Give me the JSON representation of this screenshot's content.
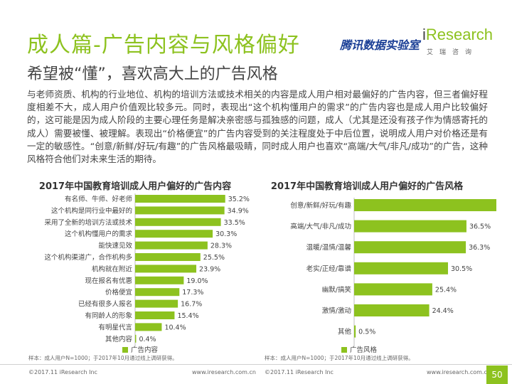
{
  "header": {
    "title": "成人篇-广告内容与风格偏好",
    "subtitle": "希望被“懂”，喜欢高大上的广告风格",
    "logo_tencent": "腾讯数据实验室",
    "logo_ir_i": "i",
    "logo_ir_rest": "Research",
    "logo_ir_cn": "艾瑞咨询"
  },
  "body_text": "与老师资质、机构的行业地位、机构的培训方法或技术相关的内容是成人用户相对最偏好的广告内容，但三者偏好程度相差不大，成人用户价值观比较多元。同时，表现出“这个机构懂用户的需求”的广告内容也是成人用户比较偏好的，这可能是因为成人阶段的主要心理任务是解决亲密感与孤独感的问题，成人（尤其是还没有孩子作为情感寄托的成人）需要被懂、被理解。表现出“价格便宜”的广告内容受到的关注程度处于中后位置，说明成人用户对价格还是有一定的敏感性。“创意/新鲜/好玩/有趣”的广告风格最吸睛，同时成人用户也喜欢“高端/大气/非凡/成功”的广告，这种风格符合他们对未来生活的期待。",
  "colors": {
    "accent": "#8dc21f",
    "bar": "#8dc21f",
    "brand_blue": "#1b3f96"
  },
  "chart_data": [
    {
      "type": "bar",
      "orientation": "horizontal",
      "title": "2017年中国教育培训成人用户偏好的广告内容",
      "categories": [
        "有名师、牛师、好老师",
        "这个机构是同行业中最好的",
        "采用了全新的培训方法或技术",
        "这个机构懂用户的需求",
        "能快速见效",
        "这个机构渠道广，合作机构多",
        "机构就在附近",
        "现在报名有优惠",
        "价格便宜",
        "已经有很多人报名",
        "有同龄人的形象",
        "有明星代言",
        "其他内容"
      ],
      "values": [
        35.2,
        34.9,
        33.5,
        30.3,
        28.3,
        25.5,
        23.9,
        19.0,
        17.3,
        16.7,
        15.4,
        10.4,
        0.4
      ],
      "value_labels": [
        "35.2%",
        "34.9%",
        "33.5%",
        "30.3%",
        "28.3%",
        "25.5%",
        "23.9%",
        "19.0%",
        "17.3%",
        "16.7%",
        "15.4%",
        "10.4%",
        "0.4%"
      ],
      "xlim": [
        0,
        50
      ],
      "legend": "广告内容",
      "legend_position": "bottom-left",
      "grid": false,
      "note": "样本：成人用户N=1000；于2017年10月通过线上调研获得。"
    },
    {
      "type": "bar",
      "orientation": "horizontal",
      "title": "2017年中国教育培训成人用户偏好的广告风格",
      "categories": [
        "创意/新鲜/好玩/有趣",
        "高端/大气/非凡/成功",
        "温暖/温情/温馨",
        "老实/正经/靠谱",
        "幽默/搞笑",
        "激情/激动",
        "其他"
      ],
      "values": [
        46.7,
        36.5,
        36.3,
        30.5,
        25.4,
        24.4,
        0.5
      ],
      "value_labels": [
        "46.7%",
        "36.5%",
        "36.3%",
        "30.5%",
        "25.4%",
        "24.4%",
        "0.5%"
      ],
      "xlim": [
        0,
        55
      ],
      "legend": "广告风格",
      "legend_position": "bottom-left",
      "grid": false,
      "note": "样本：成人用户N=1000；于2017年10月通过线上调研获得。"
    }
  ],
  "footer": {
    "copyright": "©2017.11 iResearch Inc",
    "url": "www.iresearch.com.cn",
    "page_number": "50"
  }
}
